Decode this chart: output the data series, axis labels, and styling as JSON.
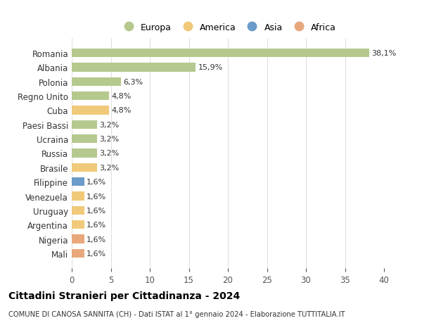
{
  "countries": [
    "Romania",
    "Albania",
    "Polonia",
    "Regno Unito",
    "Cuba",
    "Paesi Bassi",
    "Ucraina",
    "Russia",
    "Brasile",
    "Filippine",
    "Venezuela",
    "Uruguay",
    "Argentina",
    "Nigeria",
    "Mali"
  ],
  "values": [
    38.1,
    15.9,
    6.3,
    4.8,
    4.8,
    3.2,
    3.2,
    3.2,
    3.2,
    1.6,
    1.6,
    1.6,
    1.6,
    1.6,
    1.6
  ],
  "labels": [
    "38,1%",
    "15,9%",
    "6,3%",
    "4,8%",
    "4,8%",
    "3,2%",
    "3,2%",
    "3,2%",
    "3,2%",
    "1,6%",
    "1,6%",
    "1,6%",
    "1,6%",
    "1,6%",
    "1,6%"
  ],
  "colors": [
    "#b5c98e",
    "#b5c98e",
    "#b5c98e",
    "#b5c98e",
    "#f0c97a",
    "#b5c98e",
    "#b5c98e",
    "#b5c98e",
    "#f0c97a",
    "#6b9bc8",
    "#f0c97a",
    "#f0c97a",
    "#f0c97a",
    "#e8a87c",
    "#e8a87c"
  ],
  "continent_colors": {
    "Europa": "#b5c98e",
    "America": "#f0c97a",
    "Asia": "#6b9bc8",
    "Africa": "#e8a87c"
  },
  "legend_labels": [
    "Europa",
    "America",
    "Asia",
    "Africa"
  ],
  "title": "Cittadini Stranieri per Cittadinanza - 2024",
  "subtitle": "COMUNE DI CANOSA SANNITA (CH) - Dati ISTAT al 1° gennaio 2024 - Elaborazione TUTTITALIA.IT",
  "xlim": [
    0,
    40
  ],
  "xticks": [
    0,
    5,
    10,
    15,
    20,
    25,
    30,
    35,
    40
  ],
  "bg_color": "#ffffff",
  "grid_color": "#e0e0e0"
}
